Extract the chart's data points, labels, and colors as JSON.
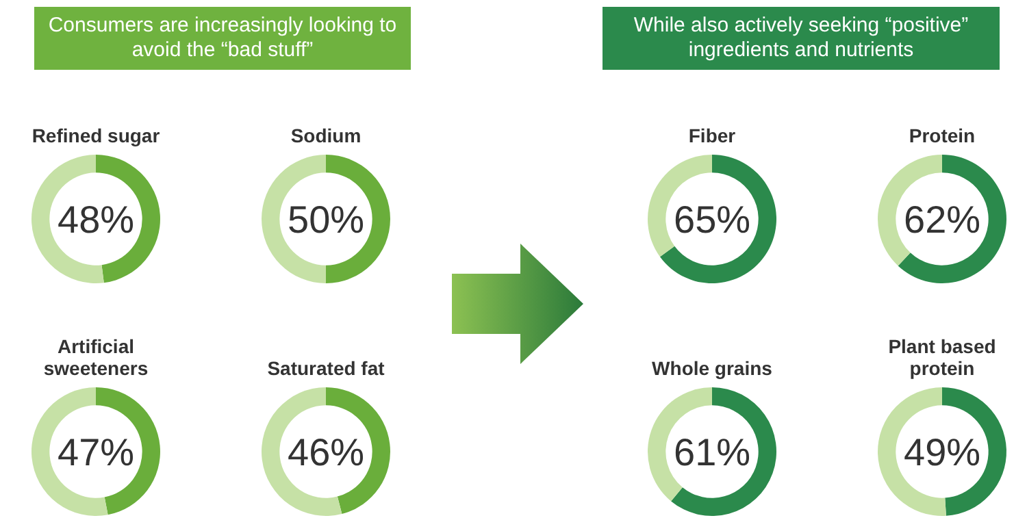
{
  "chart_data": [
    {
      "type": "other",
      "title": "Consumers are increasingly looking to avoid the “bad stuff”"
    },
    {
      "type": "donut",
      "title": "Refined sugar",
      "categories": [
        null,
        null
      ],
      "values": [
        48,
        52
      ],
      "colors": [
        "#6aae3b",
        "#c6e1a6"
      ],
      "value_labels": [
        "48%",
        null
      ]
    },
    {
      "type": "donut",
      "title": "Sodium",
      "categories": [
        null,
        null
      ],
      "values": [
        50,
        50
      ],
      "colors": [
        "#6aae3b",
        "#c6e1a6"
      ],
      "value_labels": [
        "50%",
        null
      ]
    },
    {
      "type": "donut",
      "title": "Artificial sweeteners",
      "categories": [
        null,
        null
      ],
      "values": [
        47,
        53
      ],
      "colors": [
        "#6aae3b",
        "#c6e1a6"
      ],
      "value_labels": [
        "47%",
        null
      ]
    },
    {
      "type": "donut",
      "title": "Saturated fat",
      "categories": [
        null,
        null
      ],
      "values": [
        46,
        54
      ],
      "colors": [
        "#6aae3b",
        "#c6e1a6"
      ],
      "value_labels": [
        "46%",
        null
      ]
    },
    {
      "type": "other",
      "title": "While also actively seeking “positive” ingredients and nutrients"
    },
    {
      "type": "donut",
      "title": "Fiber",
      "categories": [
        null,
        null
      ],
      "values": [
        65,
        35
      ],
      "colors": [
        "#2b8a4c",
        "#c6e1a6"
      ],
      "value_labels": [
        "65%",
        null
      ]
    },
    {
      "type": "donut",
      "title": "Protein",
      "categories": [
        null,
        null
      ],
      "values": [
        62,
        38
      ],
      "colors": [
        "#2b8a4c",
        "#c6e1a6"
      ],
      "value_labels": [
        "62%",
        null
      ]
    },
    {
      "type": "donut",
      "title": "Whole grains",
      "categories": [
        null,
        null
      ],
      "values": [
        61,
        39
      ],
      "colors": [
        "#2b8a4c",
        "#c6e1a6"
      ],
      "value_labels": [
        "61%",
        null
      ]
    },
    {
      "type": "donut",
      "title": "Plant based protein",
      "categories": [
        null,
        null
      ],
      "values": [
        49,
        51
      ],
      "colors": [
        "#2b8a4c",
        "#c6e1a6"
      ],
      "value_labels": [
        "49%",
        null
      ]
    }
  ]
}
